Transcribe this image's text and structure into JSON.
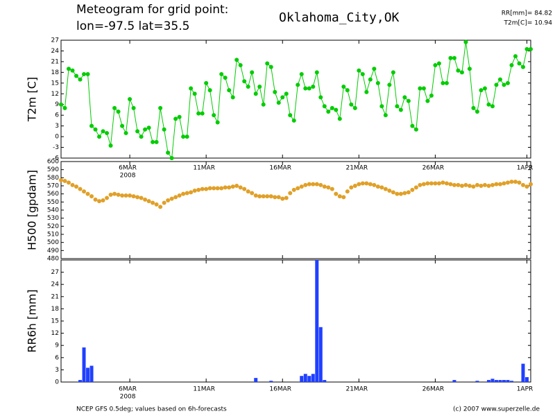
{
  "header": {
    "line1": "Meteogram for grid point:",
    "line2": "lon=-97.5 lat=35.5",
    "location": "Oklahoma_City,OK",
    "rr_total": "RR[mm]= 84.82",
    "t2m_mean": "T2m[C]= 10.94"
  },
  "footer": {
    "source": "NCEP GFS 0.5deg; values based on 6h-forecasts",
    "copyright": "(c) 2007 www.superzelle.de"
  },
  "chart_data": [
    {
      "type": "line",
      "ylabel": "T2m [C]",
      "color": "#00cc00",
      "xlim": [
        0.5,
        31.25
      ],
      "ylim": [
        -6,
        27
      ],
      "yticks": [
        -6,
        -3,
        0,
        3,
        6,
        9,
        12,
        15,
        18,
        21,
        24,
        27
      ],
      "xticks": [
        {
          "value": 5,
          "label": "6MAR"
        },
        {
          "value": 10,
          "label": "11MAR"
        },
        {
          "value": 15,
          "label": "16MAR"
        },
        {
          "value": 20,
          "label": "21MAR"
        },
        {
          "value": 25,
          "label": "26MAR"
        },
        {
          "value": 31,
          "label": "1APR"
        }
      ],
      "x_sublabel": "2008",
      "x": [
        0.5,
        0.75,
        1,
        1.25,
        1.5,
        1.75,
        2,
        2.25,
        2.5,
        2.75,
        3,
        3.25,
        3.5,
        3.75,
        4,
        4.25,
        4.5,
        4.75,
        5,
        5.25,
        5.5,
        5.75,
        6,
        6.25,
        6.5,
        6.75,
        7,
        7.25,
        7.5,
        7.75,
        8,
        8.25,
        8.5,
        8.75,
        9,
        9.25,
        9.5,
        9.75,
        10,
        10.25,
        10.5,
        10.75,
        11,
        11.25,
        11.5,
        11.75,
        12,
        12.25,
        12.5,
        12.75,
        13,
        13.25,
        13.5,
        13.75,
        14,
        14.25,
        14.5,
        14.75,
        15,
        15.25,
        15.5,
        15.75,
        16,
        16.25,
        16.5,
        16.75,
        17,
        17.25,
        17.5,
        17.75,
        18,
        18.25,
        18.5,
        18.75,
        19,
        19.25,
        19.5,
        19.75,
        20,
        20.25,
        20.5,
        20.75,
        21,
        21.25,
        21.5,
        21.75,
        22,
        22.25,
        22.5,
        22.75,
        23,
        23.25,
        23.5,
        23.75,
        24,
        24.25,
        24.5,
        24.75,
        25,
        25.25,
        25.5,
        25.75,
        26,
        26.25,
        26.5,
        26.75,
        27,
        27.25,
        27.5,
        27.75,
        28,
        28.25,
        28.5,
        28.75,
        29,
        29.25,
        29.5,
        29.75,
        30,
        30.25,
        30.5,
        30.75,
        31,
        31.25
      ],
      "values": [
        9,
        8,
        19,
        18.5,
        17,
        16,
        17.5,
        17.5,
        3,
        2,
        0,
        1.5,
        1,
        -2.5,
        8,
        7,
        3,
        1,
        10.5,
        8,
        1.5,
        0,
        2,
        2.5,
        -1.5,
        -1.5,
        8,
        2,
        -4.5,
        -6,
        5,
        5.5,
        0,
        0,
        13.5,
        12,
        6.5,
        6.5,
        15,
        13,
        6,
        4,
        17.5,
        16.5,
        13,
        11,
        21.5,
        20,
        15.5,
        14,
        18,
        12,
        14,
        9,
        20.5,
        19.5,
        12.5,
        9.5,
        11,
        12,
        6,
        4.5,
        14.5,
        17.5,
        13.5,
        13.5,
        14,
        18,
        11,
        8.5,
        7,
        8,
        7.5,
        5,
        14,
        13,
        9,
        8,
        18.5,
        17.5,
        12.5,
        16,
        19,
        15,
        8.5,
        6,
        14.5,
        18,
        8.5,
        7.5,
        11,
        10,
        3,
        2,
        13.5,
        13.5,
        10,
        11.5,
        20,
        20.5,
        15,
        15,
        22,
        22,
        18.5,
        18,
        26.5,
        19,
        8,
        7,
        13,
        13.5,
        9,
        8.5,
        14.5,
        16,
        14.5,
        15,
        20,
        22.5,
        20.5,
        19.5,
        24.5,
        24.5
      ]
    },
    {
      "type": "scatter",
      "ylabel": "H500 [gpdam]",
      "color": "#e0a028",
      "xlim": [
        0.5,
        31.25
      ],
      "ylim": [
        480,
        600
      ],
      "yticks": [
        480,
        490,
        500,
        510,
        520,
        530,
        540,
        550,
        560,
        570,
        580,
        590,
        600
      ],
      "xticks": [
        5,
        10,
        15,
        20,
        25,
        31
      ],
      "x": [
        0.5,
        0.75,
        1,
        1.25,
        1.5,
        1.75,
        2,
        2.25,
        2.5,
        2.75,
        3,
        3.25,
        3.5,
        3.75,
        4,
        4.25,
        4.5,
        4.75,
        5,
        5.25,
        5.5,
        5.75,
        6,
        6.25,
        6.5,
        6.75,
        7,
        7.25,
        7.5,
        7.75,
        8,
        8.25,
        8.5,
        8.75,
        9,
        9.25,
        9.5,
        9.75,
        10,
        10.25,
        10.5,
        10.75,
        11,
        11.25,
        11.5,
        11.75,
        12,
        12.25,
        12.5,
        12.75,
        13,
        13.25,
        13.5,
        13.75,
        14,
        14.25,
        14.5,
        14.75,
        15,
        15.25,
        15.5,
        15.75,
        16,
        16.25,
        16.5,
        16.75,
        17,
        17.25,
        17.5,
        17.75,
        18,
        18.25,
        18.5,
        18.75,
        19,
        19.25,
        19.5,
        19.75,
        20,
        20.25,
        20.5,
        20.75,
        21,
        21.25,
        21.5,
        21.75,
        22,
        22.25,
        22.5,
        22.75,
        23,
        23.25,
        23.5,
        23.75,
        24,
        24.25,
        24.5,
        24.75,
        25,
        25.25,
        25.5,
        25.75,
        26,
        26.25,
        26.5,
        26.75,
        27,
        27.25,
        27.5,
        27.75,
        28,
        28.25,
        28.5,
        28.75,
        29,
        29.25,
        29.5,
        29.75,
        30,
        30.25,
        30.5,
        30.75,
        31,
        31.25
      ],
      "values": [
        577,
        576,
        574,
        571,
        569,
        566,
        563,
        560,
        557,
        553,
        551,
        552,
        555,
        559,
        560,
        559,
        558,
        558,
        558,
        557,
        556,
        555,
        553,
        551,
        549,
        547,
        544,
        549,
        552,
        554,
        556,
        558,
        560,
        561,
        562,
        564,
        565,
        566,
        566,
        567,
        567,
        567,
        567,
        568,
        568,
        569,
        570,
        568,
        566,
        563,
        561,
        558,
        557,
        557,
        557,
        557,
        556,
        556,
        554,
        555,
        561,
        565,
        567,
        569,
        571,
        572,
        572,
        572,
        571,
        569,
        568,
        566,
        560,
        557,
        556,
        563,
        568,
        570,
        572,
        573,
        573,
        572,
        571,
        569,
        568,
        566,
        564,
        562,
        560,
        560,
        561,
        562,
        565,
        568,
        571,
        572,
        573,
        573,
        573,
        573,
        574,
        573,
        572,
        571,
        571,
        570,
        571,
        570,
        569,
        571,
        570,
        571,
        570,
        571,
        572,
        572,
        573,
        574,
        575,
        575,
        574,
        571,
        569,
        572
      ]
    },
    {
      "type": "bar",
      "ylabel": "RR6h [mm]",
      "color": "#2040ff",
      "xlim": [
        0.5,
        31.25
      ],
      "ylim": [
        0,
        30
      ],
      "yticks": [
        0,
        3,
        6,
        9,
        12,
        15,
        18,
        21,
        24,
        27
      ],
      "xticks": [
        {
          "value": 5,
          "label": "6MAR"
        },
        {
          "value": 10,
          "label": "11MAR"
        },
        {
          "value": 15,
          "label": "16MAR"
        },
        {
          "value": 20,
          "label": "21MAR"
        },
        {
          "value": 25,
          "label": "26MAR"
        },
        {
          "value": 31,
          "label": "1APR"
        }
      ],
      "x_sublabel": "2008",
      "x": [
        0.5,
        0.75,
        1,
        1.25,
        1.5,
        1.75,
        2,
        2.25,
        2.5,
        2.75,
        3,
        3.25,
        3.5,
        3.75,
        4,
        4.25,
        4.5,
        4.75,
        5,
        5.25,
        5.5,
        5.75,
        6,
        6.25,
        6.5,
        6.75,
        7,
        7.25,
        7.5,
        7.75,
        8,
        8.25,
        8.5,
        8.75,
        9,
        9.25,
        9.5,
        9.75,
        10,
        10.25,
        10.5,
        10.75,
        11,
        11.25,
        11.5,
        11.75,
        12,
        12.25,
        12.5,
        12.75,
        13,
        13.25,
        13.5,
        13.75,
        14,
        14.25,
        14.5,
        14.75,
        15,
        15.25,
        15.5,
        15.75,
        16,
        16.25,
        16.5,
        16.75,
        17,
        17.25,
        17.5,
        17.75,
        18,
        18.25,
        18.5,
        18.75,
        19,
        19.25,
        19.5,
        19.75,
        20,
        20.25,
        20.5,
        20.75,
        21,
        21.25,
        21.5,
        21.75,
        22,
        22.25,
        22.5,
        22.75,
        23,
        23.25,
        23.5,
        23.75,
        24,
        24.25,
        24.5,
        24.75,
        25,
        25.25,
        25.5,
        25.75,
        26,
        26.25,
        26.5,
        26.75,
        27,
        27.25,
        27.5,
        27.75,
        28,
        28.25,
        28.5,
        28.75,
        29,
        29.25,
        29.5,
        29.75,
        30,
        30.25,
        30.5,
        30.75,
        31,
        31.25
      ],
      "values": [
        0,
        0,
        0,
        0,
        0,
        0.5,
        8.5,
        3.5,
        4,
        0,
        0,
        0,
        0,
        0,
        0,
        0,
        0,
        0,
        0,
        0,
        0,
        0,
        0,
        0,
        0,
        0,
        0,
        0,
        0,
        0,
        0,
        0,
        0,
        0,
        0,
        0,
        0,
        0,
        0,
        0,
        0,
        0,
        0,
        0,
        0,
        0,
        0,
        0,
        0,
        0,
        0,
        1,
        0,
        0,
        0,
        0.3,
        0,
        0,
        0,
        0,
        0,
        0,
        0,
        1.5,
        2,
        1.5,
        2,
        30,
        13.5,
        0.5,
        0,
        0,
        0,
        0,
        0,
        0,
        0,
        0,
        0,
        0,
        0,
        0,
        0,
        0,
        0,
        0,
        0,
        0,
        0,
        0,
        0,
        0,
        0,
        0,
        0,
        0,
        0,
        0,
        0,
        0,
        0,
        0,
        0,
        0.5,
        0,
        0,
        0,
        0,
        0,
        0.3,
        0,
        0,
        0.5,
        0.8,
        0.5,
        0.5,
        0.5,
        0.5,
        0.3,
        0,
        0,
        4.5,
        1.2,
        0
      ]
    }
  ]
}
